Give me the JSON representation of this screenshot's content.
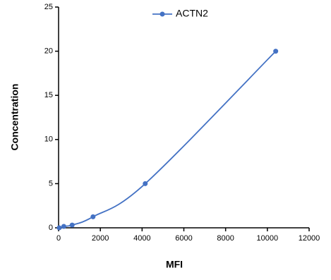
{
  "chart_data": {
    "type": "line",
    "x_label": "MFI",
    "y_label": "Concentration",
    "x": [
      30,
      250,
      650,
      1650,
      4150,
      10400
    ],
    "series": [
      {
        "name": "ACTN2",
        "color": "#4472c4",
        "values": [
          0,
          0.16,
          0.31,
          1.25,
          5,
          20
        ]
      }
    ],
    "xlim": [
      0,
      12000
    ],
    "xticks": [
      0,
      2000,
      4000,
      6000,
      8000,
      10000,
      12000
    ],
    "ylim": [
      0,
      25
    ],
    "yticks": [
      0,
      5,
      10,
      15,
      20,
      25
    ],
    "legend": "top",
    "grid": false
  }
}
